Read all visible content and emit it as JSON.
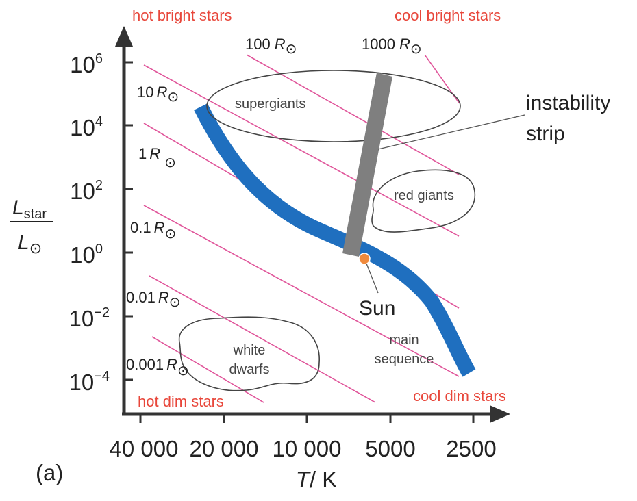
{
  "corners": {
    "top_left": "hot bright stars",
    "top_right": "cool bright stars",
    "bottom_left": "hot dim stars",
    "bottom_right": "cool dim stars"
  },
  "y_axis": {
    "label_numerator": "L",
    "label_numerator_sub": "star",
    "label_denominator": "L",
    "sun_symbol": "⊙",
    "ticks": [
      {
        "base": "10",
        "exp": "6"
      },
      {
        "base": "10",
        "exp": "4"
      },
      {
        "base": "10",
        "exp": "2"
      },
      {
        "base": "10",
        "exp": "0"
      },
      {
        "base": "10",
        "exp": "−2"
      },
      {
        "base": "10",
        "exp": "−4"
      }
    ]
  },
  "x_axis": {
    "label_italic": "T",
    "label_rest": "/ K",
    "ticks": [
      "40 000",
      "20 000",
      "10 000",
      "5000",
      "2500"
    ]
  },
  "radius_lines": [
    {
      "value": "1000",
      "unit": "R"
    },
    {
      "value": "100",
      "unit": "R"
    },
    {
      "value": "10",
      "unit": "R"
    },
    {
      "value": "1",
      "unit": "R"
    },
    {
      "value": "0.1",
      "unit": "R"
    },
    {
      "value": "0.01",
      "unit": "R"
    },
    {
      "value": "0.001",
      "unit": "R"
    }
  ],
  "regions": {
    "supergiants": "supergiants",
    "red_giants": "red giants",
    "white_dwarfs_line1": "white",
    "white_dwarfs_line2": "dwarfs",
    "main_sequence_line1": "main",
    "main_sequence_line2": "sequence"
  },
  "callouts": {
    "instability_line1": "instability",
    "instability_line2": "strip",
    "sun": "Sun"
  },
  "panel_label": "(a)",
  "colors": {
    "main_sequence": "#1f6fbf",
    "radius_lines": "#e0559a",
    "instability_strip": "#7f7f7f",
    "corner_text": "#e8473b",
    "sun": "#f08a3c",
    "axes": "#333333"
  }
}
